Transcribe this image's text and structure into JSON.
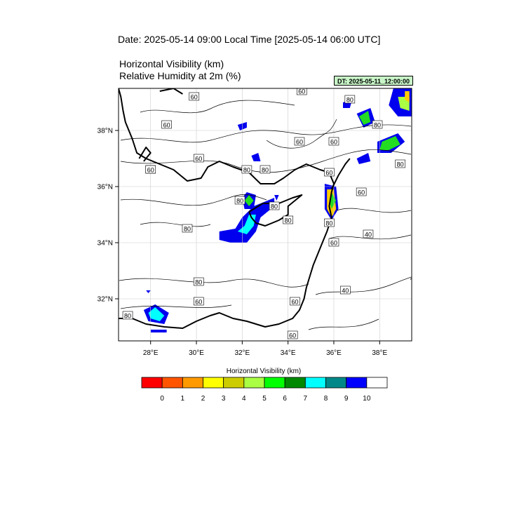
{
  "header": {
    "date_title": "Date: 2025-05-14  09:00 Local Time [2025-05-14  06:00 UTC]",
    "variable_line_1": "Horizontal Visibility   (km)",
    "variable_line_2": "Relative Humidity at 2m   (%)",
    "dt_badge": "DT: 2025-05-11_12:00:00"
  },
  "map": {
    "lon_range": [
      26.6,
      39.4
    ],
    "lat_range": [
      30.5,
      39.5
    ],
    "lon_ticks": [
      {
        "value": 28,
        "label": "28°E"
      },
      {
        "value": 30,
        "label": "30°E"
      },
      {
        "value": 32,
        "label": "32°E"
      },
      {
        "value": 34,
        "label": "34°E"
      },
      {
        "value": 36,
        "label": "36°E"
      },
      {
        "value": 38,
        "label": "38°E"
      }
    ],
    "lat_ticks": [
      {
        "value": 38,
        "label": "38°N"
      },
      {
        "value": 36,
        "label": "36°N"
      },
      {
        "value": 34,
        "label": "34°N"
      },
      {
        "value": 32,
        "label": "32°N"
      }
    ],
    "grid_lines": true,
    "rh_contour_labels": [
      {
        "lon": 31.9,
        "lat": 35.5,
        "text": "80"
      },
      {
        "lon": 32.2,
        "lat": 36.6,
        "text": "80"
      },
      {
        "lon": 33.0,
        "lat": 36.6,
        "text": "80"
      },
      {
        "lon": 33.4,
        "lat": 35.3,
        "text": "80"
      },
      {
        "lon": 34.0,
        "lat": 34.8,
        "text": "80"
      },
      {
        "lon": 35.8,
        "lat": 34.7,
        "text": "80"
      },
      {
        "lon": 29.6,
        "lat": 34.5,
        "text": "80"
      },
      {
        "lon": 36.7,
        "lat": 39.1,
        "text": "80"
      },
      {
        "lon": 37.9,
        "lat": 38.2,
        "text": "80"
      },
      {
        "lon": 38.9,
        "lat": 36.8,
        "text": "80"
      },
      {
        "lon": 28.7,
        "lat": 38.2,
        "text": "60"
      },
      {
        "lon": 29.9,
        "lat": 39.2,
        "text": "60"
      },
      {
        "lon": 34.6,
        "lat": 39.4,
        "text": "60"
      },
      {
        "lon": 30.1,
        "lat": 37.0,
        "text": "60"
      },
      {
        "lon": 34.5,
        "lat": 37.6,
        "text": "60"
      },
      {
        "lon": 36.0,
        "lat": 37.6,
        "text": "60"
      },
      {
        "lon": 35.8,
        "lat": 36.5,
        "text": "60"
      },
      {
        "lon": 37.2,
        "lat": 35.8,
        "text": "60"
      },
      {
        "lon": 36.0,
        "lat": 34.0,
        "text": "60"
      },
      {
        "lon": 34.2,
        "lat": 30.7,
        "text": "60"
      },
      {
        "lon": 34.3,
        "lat": 31.9,
        "text": "60"
      },
      {
        "lon": 30.1,
        "lat": 31.9,
        "text": "60"
      },
      {
        "lon": 27.0,
        "lat": 31.4,
        "text": "80"
      },
      {
        "lon": 28.0,
        "lat": 36.6,
        "text": "60"
      },
      {
        "lon": 30.1,
        "lat": 32.6,
        "text": "80"
      },
      {
        "lon": 36.5,
        "lat": 32.3,
        "text": "40"
      },
      {
        "lon": 37.5,
        "lat": 34.3,
        "text": "40"
      },
      {
        "lon": 28.0,
        "lat": 36.6,
        "text": "60"
      }
    ],
    "visibility_areas": [
      {
        "color": "#0000ee",
        "points": [
          [
            31.0,
            34.4
          ],
          [
            31.7,
            34.5
          ],
          [
            32.0,
            34.9
          ],
          [
            32.5,
            35.3
          ],
          [
            33.4,
            35.6
          ],
          [
            33.4,
            35.3
          ],
          [
            32.8,
            34.9
          ],
          [
            32.6,
            34.4
          ],
          [
            32.2,
            34.0
          ],
          [
            31.5,
            34.0
          ],
          [
            31.0,
            34.1
          ]
        ]
      },
      {
        "color": "#00ffff",
        "points": [
          [
            31.8,
            34.4
          ],
          [
            32.1,
            34.6
          ],
          [
            32.3,
            35.0
          ],
          [
            32.6,
            35.0
          ],
          [
            32.5,
            34.6
          ],
          [
            32.2,
            34.3
          ]
        ]
      },
      {
        "color": "#0000ee",
        "points": [
          [
            32.0,
            35.6
          ],
          [
            32.2,
            35.8
          ],
          [
            32.6,
            35.7
          ],
          [
            32.5,
            35.2
          ],
          [
            32.1,
            35.2
          ]
        ]
      },
      {
        "color": "#22dd22",
        "points": [
          [
            32.1,
            35.5
          ],
          [
            32.3,
            35.7
          ],
          [
            32.5,
            35.5
          ],
          [
            32.3,
            35.3
          ]
        ]
      },
      {
        "color": "#0000ee",
        "points": [
          [
            35.6,
            36.1
          ],
          [
            36.1,
            36.0
          ],
          [
            36.2,
            35.2
          ],
          [
            35.9,
            34.8
          ],
          [
            35.6,
            35.2
          ]
        ]
      },
      {
        "color": "#ffcc00",
        "points": [
          [
            35.7,
            35.9
          ],
          [
            36.0,
            35.9
          ],
          [
            36.1,
            35.2
          ],
          [
            35.9,
            34.9
          ],
          [
            35.7,
            35.2
          ]
        ]
      },
      {
        "color": "#22dd22",
        "points": [
          [
            35.9,
            35.8
          ],
          [
            36.1,
            35.5
          ],
          [
            35.9,
            35.2
          ],
          [
            35.8,
            35.5
          ]
        ]
      },
      {
        "color": "#0000ee",
        "points": [
          [
            27.7,
            31.6
          ],
          [
            28.2,
            31.8
          ],
          [
            28.8,
            31.5
          ],
          [
            28.6,
            31.1
          ],
          [
            27.9,
            31.2
          ]
        ]
      },
      {
        "color": "#00ffff",
        "points": [
          [
            27.9,
            31.5
          ],
          [
            28.2,
            31.7
          ],
          [
            28.6,
            31.4
          ],
          [
            28.4,
            31.2
          ],
          [
            28.0,
            31.3
          ]
        ]
      },
      {
        "color": "#0000ee",
        "points": [
          [
            27.8,
            32.3
          ],
          [
            28.0,
            32.3
          ],
          [
            27.9,
            32.2
          ]
        ]
      },
      {
        "color": "#0000ee",
        "points": [
          [
            37.0,
            38.6
          ],
          [
            37.6,
            38.8
          ],
          [
            37.8,
            38.3
          ],
          [
            37.3,
            38.1
          ]
        ]
      },
      {
        "color": "#22dd22",
        "points": [
          [
            37.1,
            38.5
          ],
          [
            37.5,
            38.7
          ],
          [
            37.6,
            38.3
          ],
          [
            37.3,
            38.2
          ]
        ]
      },
      {
        "color": "#0000ee",
        "points": [
          [
            38.6,
            39.5
          ],
          [
            39.4,
            39.5
          ],
          [
            39.4,
            38.5
          ],
          [
            38.8,
            38.5
          ],
          [
            38.4,
            38.9
          ]
        ]
      },
      {
        "color": "#aaff44",
        "points": [
          [
            38.8,
            39.2
          ],
          [
            39.3,
            39.2
          ],
          [
            39.3,
            38.7
          ],
          [
            38.9,
            38.8
          ]
        ]
      },
      {
        "color": "#ffcc00",
        "points": [
          [
            39.1,
            39.4
          ],
          [
            39.3,
            39.4
          ],
          [
            39.3,
            39.0
          ],
          [
            39.1,
            39.1
          ]
        ]
      },
      {
        "color": "#0000ee",
        "points": [
          [
            37.9,
            37.6
          ],
          [
            38.8,
            37.9
          ],
          [
            39.1,
            37.6
          ],
          [
            38.5,
            37.2
          ],
          [
            37.9,
            37.2
          ]
        ]
      },
      {
        "color": "#22dd22",
        "points": [
          [
            38.1,
            37.6
          ],
          [
            38.7,
            37.8
          ],
          [
            38.9,
            37.5
          ],
          [
            38.4,
            37.3
          ],
          [
            38.0,
            37.3
          ]
        ]
      },
      {
        "color": "#0000ee",
        "points": [
          [
            37.0,
            37.0
          ],
          [
            37.5,
            37.2
          ],
          [
            37.6,
            36.9
          ],
          [
            37.1,
            36.8
          ]
        ]
      },
      {
        "color": "#0000ee",
        "points": [
          [
            32.4,
            37.1
          ],
          [
            32.7,
            37.2
          ],
          [
            32.8,
            36.9
          ],
          [
            32.5,
            36.9
          ]
        ]
      },
      {
        "color": "#0000ee",
        "points": [
          [
            31.8,
            38.2
          ],
          [
            32.2,
            38.3
          ],
          [
            32.2,
            38.1
          ],
          [
            31.9,
            38.0
          ]
        ]
      },
      {
        "color": "#0000ee",
        "points": [
          [
            36.4,
            39.0
          ],
          [
            36.8,
            39.1
          ],
          [
            36.7,
            38.8
          ],
          [
            36.4,
            38.8
          ]
        ]
      },
      {
        "color": "#0000ee",
        "points": [
          [
            33.4,
            35.7
          ],
          [
            33.6,
            35.7
          ],
          [
            33.5,
            35.5
          ]
        ]
      },
      {
        "color": "#0000ee",
        "points": [
          [
            28.0,
            30.9
          ],
          [
            28.7,
            30.9
          ],
          [
            28.7,
            30.8
          ],
          [
            28.0,
            30.8
          ]
        ]
      }
    ],
    "coastlines": [
      [
        [
          26.6,
          31.3
        ],
        [
          27.2,
          31.3
        ],
        [
          27.8,
          31.1
        ],
        [
          28.6,
          31.0
        ],
        [
          29.4,
          30.95
        ],
        [
          30.0,
          31.2
        ],
        [
          30.6,
          31.4
        ],
        [
          31.0,
          31.5
        ],
        [
          31.6,
          31.3
        ],
        [
          32.2,
          31.2
        ],
        [
          32.6,
          31.1
        ],
        [
          33.0,
          31.0
        ],
        [
          33.6,
          31.1
        ],
        [
          34.2,
          31.3
        ],
        [
          34.5,
          31.6
        ],
        [
          34.7,
          32.0
        ],
        [
          34.8,
          32.4
        ],
        [
          34.95,
          32.8
        ],
        [
          35.1,
          33.2
        ],
        [
          35.3,
          33.6
        ],
        [
          35.5,
          34.0
        ],
        [
          35.7,
          34.4
        ],
        [
          35.9,
          34.9
        ],
        [
          35.8,
          35.3
        ],
        [
          35.9,
          35.8
        ],
        [
          36.0,
          36.1
        ],
        [
          35.8,
          36.5
        ],
        [
          35.4,
          36.6
        ],
        [
          34.8,
          36.8
        ],
        [
          34.3,
          36.6
        ],
        [
          33.8,
          36.3
        ],
        [
          33.4,
          36.1
        ],
        [
          32.8,
          36.1
        ],
        [
          32.3,
          36.5
        ],
        [
          31.6,
          36.7
        ],
        [
          31.0,
          36.9
        ],
        [
          30.5,
          36.7
        ],
        [
          30.2,
          36.3
        ],
        [
          29.6,
          36.2
        ],
        [
          29.0,
          36.6
        ],
        [
          28.4,
          36.8
        ],
        [
          27.8,
          37.0
        ],
        [
          27.4,
          37.2
        ],
        [
          27.2,
          37.7
        ],
        [
          26.9,
          38.3
        ],
        [
          26.8,
          38.7
        ],
        [
          26.7,
          39.2
        ],
        [
          26.6,
          39.5
        ]
      ],
      [
        [
          32.3,
          35.1
        ],
        [
          32.9,
          35.4
        ],
        [
          33.6,
          35.4
        ],
        [
          34.2,
          35.6
        ],
        [
          34.6,
          35.7
        ],
        [
          34.0,
          35.3
        ],
        [
          34.0,
          35.0
        ],
        [
          33.6,
          34.8
        ],
        [
          33.0,
          34.6
        ],
        [
          32.6,
          34.7
        ],
        [
          32.4,
          34.9
        ],
        [
          32.3,
          35.1
        ]
      ],
      [
        [
          27.5,
          37.0
        ],
        [
          27.8,
          37.4
        ],
        [
          28.0,
          37.2
        ],
        [
          27.7,
          36.9
        ]
      ],
      [
        [
          28.4,
          39.4
        ],
        [
          29.0,
          39.5
        ],
        [
          29.4,
          39.3
        ]
      ],
      [
        [
          35.9,
          35.9
        ],
        [
          36.2,
          36.4
        ],
        [
          36.5,
          36.8
        ],
        [
          36.7,
          37.0
        ]
      ]
    ]
  },
  "legend": {
    "title": "Horizontal Visibility  (km)",
    "colors": [
      "#ff0000",
      "#ff5500",
      "#ff9900",
      "#ffff00",
      "#cccc00",
      "#aaff44",
      "#00ff00",
      "#008800",
      "#00ffff",
      "#008888",
      "#0000ff",
      "#ffffff"
    ],
    "labels": [
      "0",
      "1",
      "2",
      "3",
      "4",
      "5",
      "6",
      "7",
      "8",
      "9",
      "10"
    ]
  }
}
